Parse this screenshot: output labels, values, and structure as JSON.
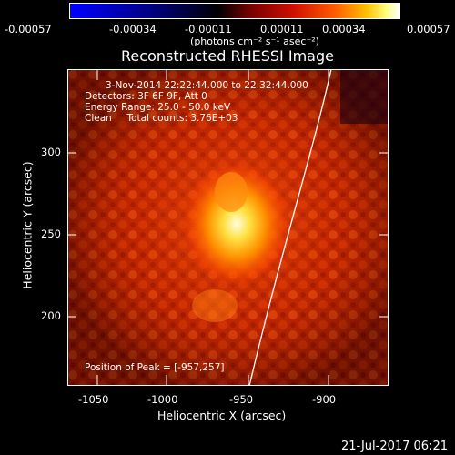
{
  "colorbar": {
    "tick_labels": [
      "-0.00057",
      "-0.00034",
      "-0.00011",
      "0.00011",
      "0.00034",
      "0.00057"
    ],
    "units_label": "(photons cm⁻² s⁻¹ asec⁻²)",
    "colors": [
      "#0000ff",
      "#000000",
      "#8b0000",
      "#ff4000",
      "#ffd400",
      "#ffffff"
    ]
  },
  "plot": {
    "title": "Reconstructed RHESSI Image",
    "info_lines": [
      "3-Nov-2014 22:22:44.000 to 22:32:44.000",
      "Detectors: 3F 6F 9F, Att 0",
      "Energy Range: 25.0 - 50.0 keV",
      "Clean     Total counts: 3.76E+03"
    ],
    "peak_text": "Position of Peak = [-957,257]",
    "x_ticks": [
      "-1050",
      "-1000",
      "-950",
      "-900"
    ],
    "y_ticks": [
      "300",
      "250",
      "200"
    ],
    "xlabel": "Heliocentric X (arcsec)",
    "ylabel": "Heliocentric Y (arcsec)",
    "x_range": [
      -1057,
      -873
    ],
    "y_range": [
      155,
      347
    ],
    "peak": [
      -957,
      257
    ]
  },
  "footer": {
    "timestamp": "21-Jul-2017 06:21"
  }
}
